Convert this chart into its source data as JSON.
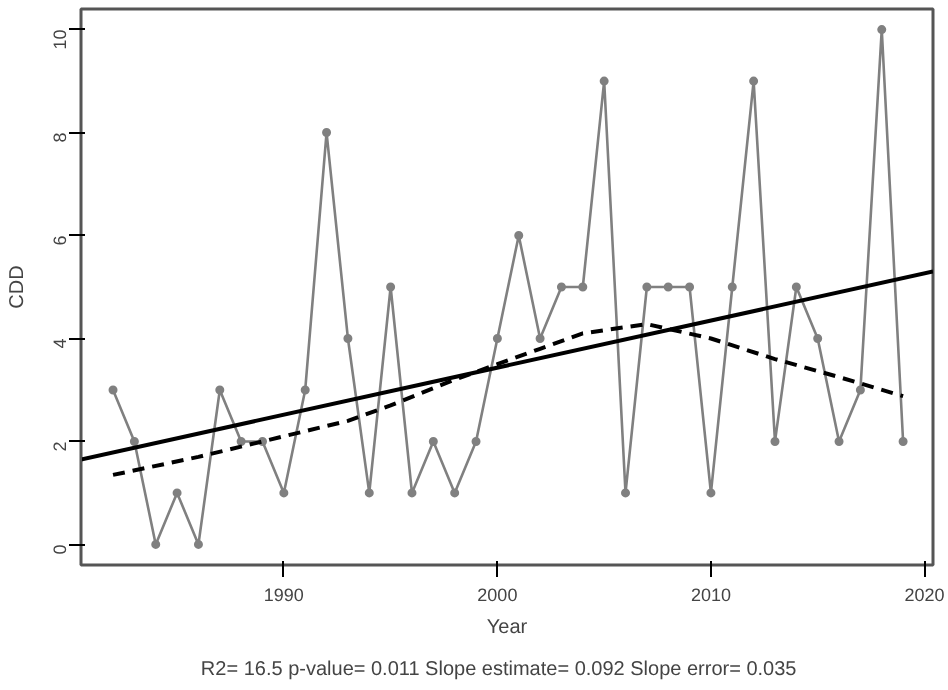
{
  "chart_data": {
    "type": "line",
    "xlabel": "Year",
    "ylabel": "CDD",
    "annotations": [
      "R2= 16.5  p-value= 0.011  Slope estimate= 0.092  Slope error= 0.035"
    ],
    "xlim": [
      1980.5,
      2020.4
    ],
    "ylim": [
      -0.4,
      10.4
    ],
    "xticks": [
      1990,
      2000,
      2010,
      2020
    ],
    "yticks": [
      0,
      2,
      4,
      6,
      8,
      10
    ],
    "grid": false,
    "series": [
      {
        "color": "#808080",
        "marker": "circle",
        "line_style": "solid",
        "x": [
          1982,
          1983,
          1984,
          1985,
          1986,
          1987,
          1988,
          1989,
          1990,
          1991,
          1992,
          1993,
          1994,
          1995,
          1996,
          1997,
          1998,
          1999,
          2000,
          2001,
          2002,
          2003,
          2004,
          2005,
          2006,
          2007,
          2008,
          2009,
          2010,
          2011,
          2012,
          2013,
          2014,
          2015,
          2016,
          2017,
          2018,
          2019
        ],
        "values": [
          3,
          2,
          0,
          1,
          0,
          3,
          2,
          2,
          1,
          3,
          8,
          4,
          1,
          5,
          1,
          2,
          1,
          2,
          4,
          6,
          4,
          5,
          5,
          9,
          1,
          5,
          5,
          5,
          1,
          5,
          9,
          2,
          5,
          4,
          2,
          3,
          10,
          2
        ]
      },
      {
        "color": "#000000",
        "marker": "none",
        "line_style": "solid",
        "x": [
          1980.5,
          2020.4
        ],
        "values": [
          1.65,
          5.3
        ]
      },
      {
        "color": "#000000",
        "marker": "none",
        "line_style": "dashed",
        "x": [
          1982,
          1986,
          1990,
          1993,
          1995,
          1998,
          2000,
          2002,
          2004,
          2007,
          2010,
          2013,
          2016,
          2019
        ],
        "values": [
          1.35,
          1.7,
          2.1,
          2.4,
          2.7,
          3.2,
          3.5,
          3.8,
          4.1,
          4.28,
          4.0,
          3.6,
          3.25,
          2.88
        ]
      }
    ]
  }
}
